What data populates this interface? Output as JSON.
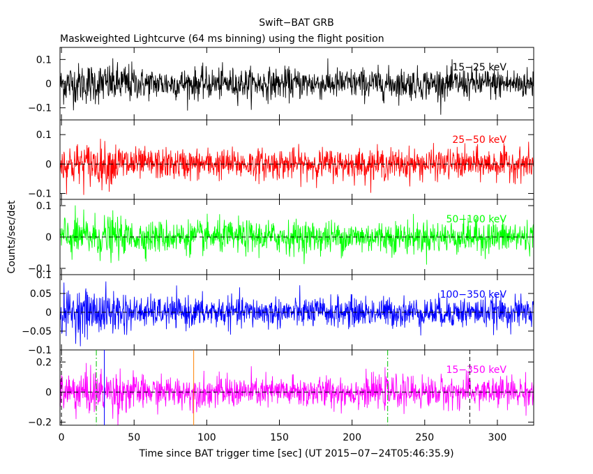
{
  "chart_data": {
    "type": "line",
    "title": "Swift−BAT GRB",
    "subtitle": "Maskweighted Lightcurve (64 ms binning) using the flight position",
    "xlabel": "Time since BAT trigger time [sec] (UT 2015−07−24T05:46:35.9)",
    "ylabel": "Counts/sec/det",
    "xlim": [
      -1,
      325
    ],
    "x_ticks": [
      0,
      50,
      100,
      150,
      200,
      250,
      300
    ],
    "x_tick_labels": [
      "0",
      "50",
      "100",
      "150",
      "200",
      "250",
      "300"
    ],
    "panels": [
      {
        "name": "15−25 keV",
        "color": "#000000",
        "ylim": [
          -0.15,
          0.15
        ],
        "y_ticks": [
          -0.1,
          0,
          0.1
        ],
        "y_tick_labels": [
          "−0.1",
          "0",
          "0.1"
        ],
        "noise_sigma": 0.032,
        "burst_interval": [
          0,
          50
        ],
        "burst_sigma": 0.042,
        "zero_line": false
      },
      {
        "name": "25−50 keV",
        "color": "#ff0000",
        "ylim": [
          -0.12,
          0.15
        ],
        "y_ticks": [
          -0.1,
          0,
          0.1
        ],
        "y_tick_labels": [
          "−0.1",
          "0",
          "0.1"
        ],
        "noise_sigma": 0.026,
        "burst_interval": [
          0,
          50
        ],
        "burst_sigma": 0.036,
        "zero_line": true
      },
      {
        "name": "50−100 keV",
        "color": "#00ff00",
        "ylim": [
          -0.12,
          0.12
        ],
        "y_ticks": [
          -0.1,
          0,
          0.1
        ],
        "y_tick_labels": [
          "−0.1",
          "0",
          "0.1"
        ],
        "noise_sigma": 0.026,
        "burst_interval": [
          0,
          40
        ],
        "burst_sigma": 0.034,
        "zero_line": true
      },
      {
        "name": "100−350 keV",
        "color": "#0000ff",
        "ylim": [
          -0.1,
          0.1
        ],
        "y_ticks": [
          -0.1,
          -0.05,
          0,
          0.05,
          0.1
        ],
        "y_tick_labels": [
          "−0.1",
          "−0.05",
          "0",
          "0.05",
          "0.1"
        ],
        "noise_sigma": 0.02,
        "burst_interval": [
          0,
          45
        ],
        "burst_sigma": 0.03,
        "zero_line": true
      },
      {
        "name": "15−350 keV",
        "color": "#ff00ff",
        "ylim": [
          -0.22,
          0.28
        ],
        "y_ticks": [
          -0.2,
          0,
          0.2
        ],
        "y_tick_labels": [
          "−0.2",
          "0",
          "0.2"
        ],
        "noise_sigma": 0.052,
        "burst_interval": [
          0,
          50
        ],
        "burst_sigma": 0.075,
        "zero_line": true
      }
    ],
    "vertical_markers": [
      {
        "x": 0,
        "color": "#000000",
        "style": "dashed"
      },
      {
        "x": 24,
        "color": "#00c000",
        "style": "dashdot"
      },
      {
        "x": 29.5,
        "color": "#0000ff",
        "style": "solid"
      },
      {
        "x": 91,
        "color": "#ff8000",
        "style": "solid"
      },
      {
        "x": 224.5,
        "color": "#00c000",
        "style": "dashdot"
      },
      {
        "x": 281,
        "color": "#000000",
        "style": "dashed"
      }
    ]
  }
}
